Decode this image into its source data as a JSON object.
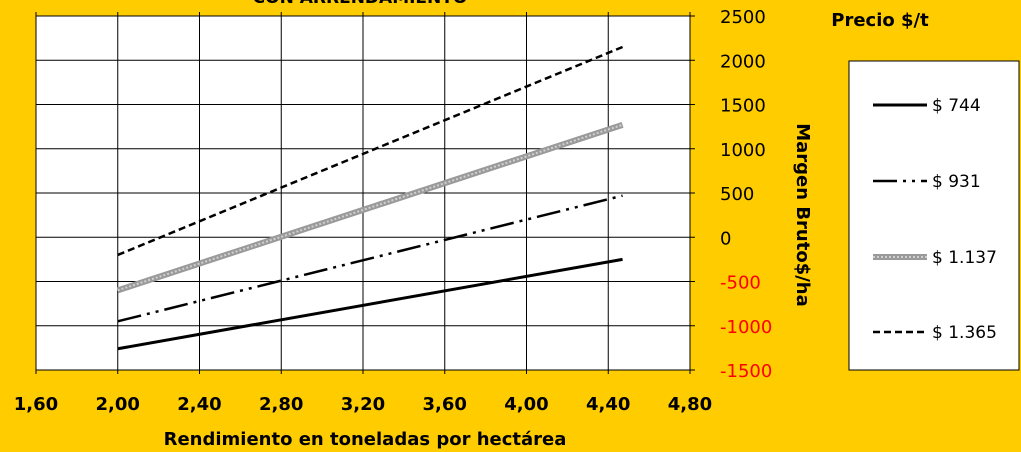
{
  "chart_data": {
    "type": "line",
    "title": "CON ARRENDAMIENTO",
    "xlabel": "Rendimiento  en toneladas por hectárea",
    "ylabel": "Margen Bruto$/ha",
    "xlim": [
      1.6,
      4.8
    ],
    "ylim": [
      -1500,
      2500
    ],
    "x_ticks": [
      1.6,
      2.0,
      2.4,
      2.8,
      3.2,
      3.6,
      4.0,
      4.4,
      4.8
    ],
    "x_tick_labels": [
      "1,60",
      "2,00",
      "2,40",
      "2,80",
      "3,20",
      "3,60",
      "4,00",
      "4,40",
      "4,80"
    ],
    "y_ticks": [
      -1500,
      -1000,
      -500,
      0,
      500,
      1000,
      1500,
      2000,
      2500
    ],
    "y_tick_labels": [
      "-1500",
      "-1000",
      "-500",
      "0",
      "500",
      "1000",
      "1500",
      "2000",
      "2500"
    ],
    "negative_tick_color": "#FF0000",
    "legend_title": "Precio $/t",
    "legend_position": "right",
    "grid": true,
    "series": [
      {
        "name": "$ 744",
        "style": "solid",
        "color": "#000000",
        "points": [
          [
            2.0,
            -1260
          ],
          [
            4.47,
            -250
          ]
        ]
      },
      {
        "name": "$ 931",
        "style": "dash-dot-dot",
        "color": "#000000",
        "points": [
          [
            2.0,
            -950
          ],
          [
            4.47,
            470
          ]
        ]
      },
      {
        "name": "$ 1.137",
        "style": "gray-thick",
        "color": "#A6A6A6",
        "points": [
          [
            2.0,
            -600
          ],
          [
            4.47,
            1270
          ]
        ]
      },
      {
        "name": "$ 1.365",
        "style": "dashed",
        "color": "#000000",
        "points": [
          [
            2.0,
            -200
          ],
          [
            4.47,
            2150
          ]
        ]
      }
    ]
  }
}
